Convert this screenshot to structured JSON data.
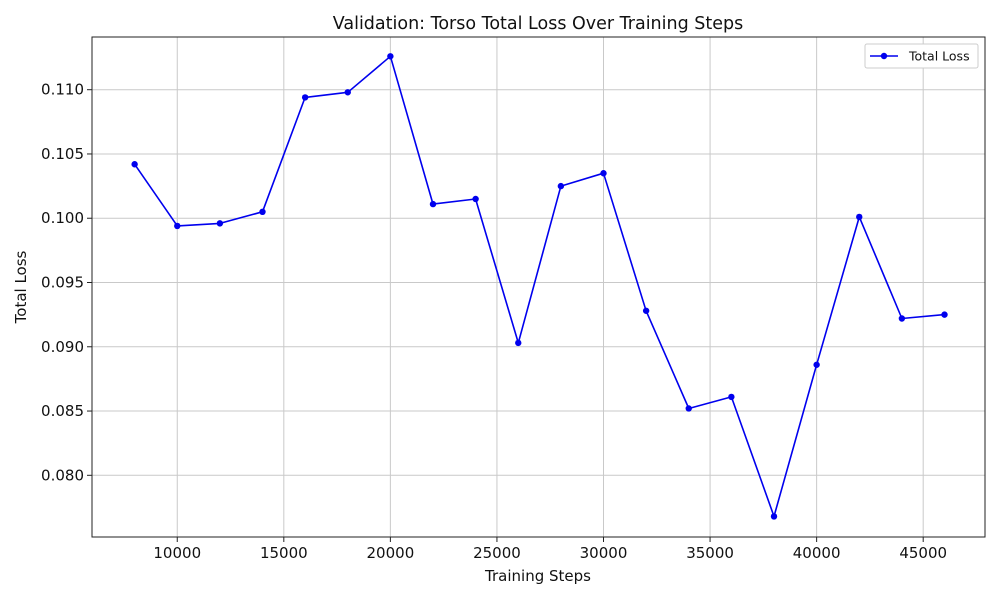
{
  "chart_data": {
    "type": "line",
    "title": "Validation: Torso Total Loss Over Training Steps",
    "xlabel": "Training Steps",
    "ylabel": "Total Loss",
    "xlim": [
      6000,
      47900
    ],
    "ylim": [
      0.0752,
      0.1141
    ],
    "xticks": [
      10000,
      15000,
      20000,
      25000,
      30000,
      35000,
      40000,
      45000
    ],
    "yticks": [
      0.08,
      0.085,
      0.09,
      0.095,
      0.1,
      0.105,
      0.11
    ],
    "grid": true,
    "legend_position": "top-right",
    "series": [
      {
        "name": "Total Loss",
        "color": "#0000ee",
        "marker": "circle",
        "x": [
          8000,
          10000,
          12000,
          14000,
          16000,
          18000,
          20000,
          22000,
          24000,
          26000,
          28000,
          30000,
          32000,
          34000,
          36000,
          38000,
          40000,
          42000,
          44000,
          46000
        ],
        "y": [
          0.1042,
          0.0994,
          0.0996,
          0.1005,
          0.1094,
          0.1098,
          0.1126,
          0.1011,
          0.1015,
          0.0903,
          0.1025,
          0.1035,
          0.0928,
          0.0852,
          0.0861,
          0.0768,
          0.0886,
          0.1001,
          0.0922,
          0.0925
        ]
      }
    ]
  }
}
